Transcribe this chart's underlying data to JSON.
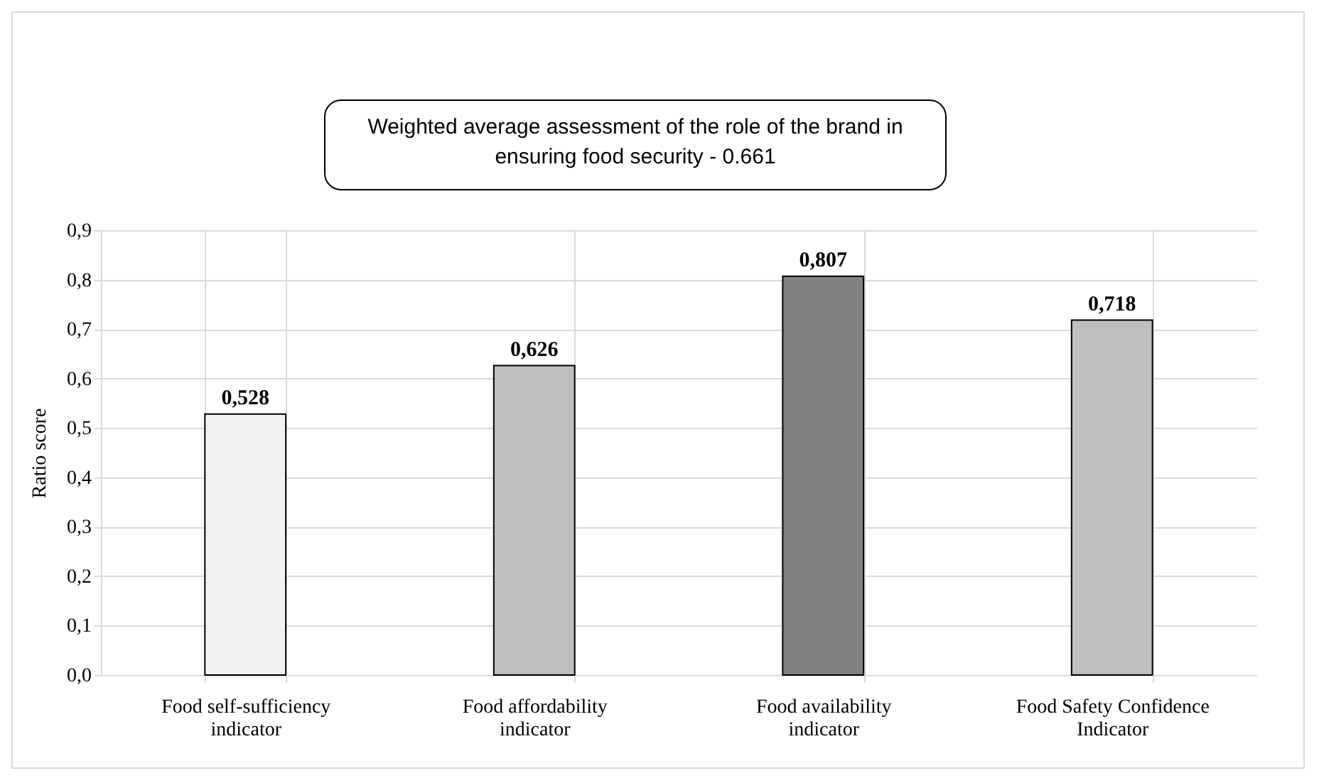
{
  "chart_data": {
    "type": "bar",
    "title": "Weighted average assessment of the role of the brand in ensuring food security - 0.661",
    "ylabel": "Ratio score",
    "categories": [
      "Food self-sufficiency indicator",
      "Food affordability indicator",
      "Food availability indicator",
      "Food Safety Confidence Indicator"
    ],
    "values": [
      0.528,
      0.626,
      0.807,
      0.718
    ],
    "colors": [
      "#f2f2f2",
      "#bfbfbf",
      "#808080",
      "#bfbfbf"
    ],
    "value_labels": [
      "0,528",
      "0,626",
      "0,807",
      "0,718"
    ],
    "ylim": [
      0,
      0.9
    ],
    "yticks": [
      {
        "value": 0,
        "label": "0,0"
      },
      {
        "value": 0.1,
        "label": "0,1"
      },
      {
        "value": 0.2,
        "label": "0,2"
      },
      {
        "value": 0.3,
        "label": "0,3"
      },
      {
        "value": 0.4,
        "label": "0,4"
      },
      {
        "value": 0.5,
        "label": "0,5"
      },
      {
        "value": 0.6,
        "label": "0,6"
      },
      {
        "value": 0.7,
        "label": "0,7"
      },
      {
        "value": 0.8,
        "label": "0,8"
      },
      {
        "value": 0.9,
        "label": "0,9"
      }
    ],
    "grid": true
  }
}
